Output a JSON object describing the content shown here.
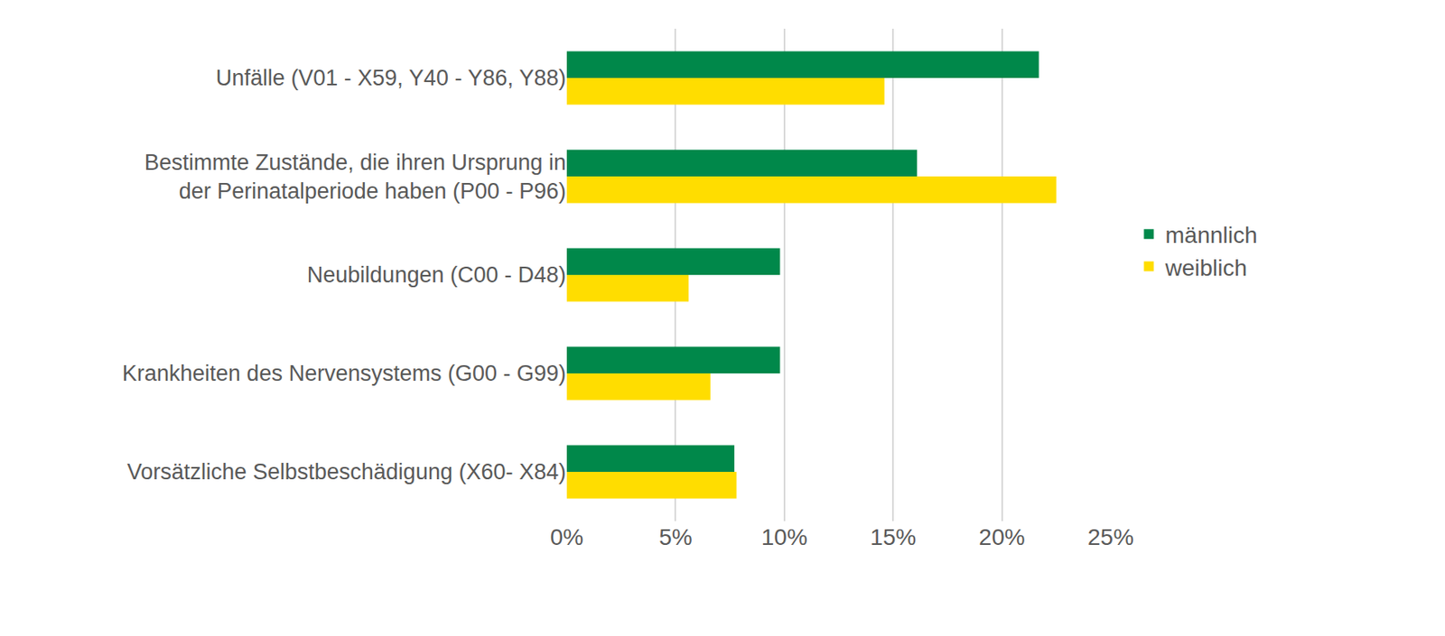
{
  "chart_data": {
    "type": "bar",
    "orientation": "horizontal",
    "categories": [
      "Unfälle (V01 - X59, Y40 - Y86, Y88)",
      "Bestimmte Zustände, die ihren Ursprung in\nder Perinatalperiode haben (P00 - P96)",
      "Neubildungen (C00 - D48)",
      "Krankheiten des Nervensystems (G00 - G99)",
      "Vorsätzliche Selbstbeschädigung (X60- X84)"
    ],
    "series": [
      {
        "name": "männlich",
        "color": "#00884A",
        "values": [
          21.7,
          16.1,
          9.8,
          9.8,
          7.7
        ]
      },
      {
        "name": "weiblich",
        "color": "#FFDD00",
        "values": [
          14.6,
          22.5,
          5.6,
          6.6,
          7.8
        ]
      }
    ],
    "xlim": [
      0,
      25
    ],
    "xticks": [
      {
        "value": 0,
        "label": "0%"
      },
      {
        "value": 5,
        "label": "5%"
      },
      {
        "value": 10,
        "label": "10%"
      },
      {
        "value": 15,
        "label": "15%"
      },
      {
        "value": 20,
        "label": "20%"
      },
      {
        "value": 25,
        "label": "25%"
      }
    ],
    "grid": true,
    "legend": "right"
  }
}
